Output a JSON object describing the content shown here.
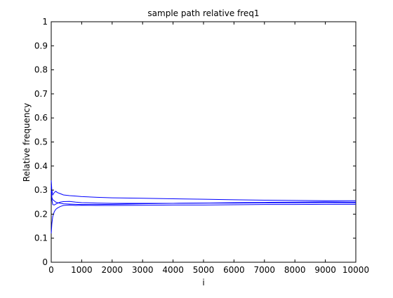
{
  "chart_data": {
    "type": "line",
    "title": "sample path relative freq1",
    "xlabel": "i",
    "ylabel": "Relative frequency",
    "xlim": [
      0,
      10000
    ],
    "ylim": [
      0,
      1
    ],
    "x_ticks": [
      0,
      1000,
      2000,
      3000,
      4000,
      5000,
      6000,
      7000,
      8000,
      9000,
      10000
    ],
    "y_ticks": [
      0,
      0.1,
      0.2,
      0.3,
      0.4,
      0.5,
      0.6,
      0.7,
      0.8,
      0.9,
      1
    ],
    "x_tick_labels": [
      "0",
      "1000",
      "2000",
      "3000",
      "4000",
      "5000",
      "6000",
      "7000",
      "8000",
      "9000",
      "10000"
    ],
    "y_tick_labels": [
      "0",
      "0.1",
      "0.2",
      "0.3",
      "0.4",
      "0.5",
      "0.6",
      "0.7",
      "0.8",
      "0.9",
      "1"
    ],
    "grid": false,
    "line_color": "#0000ff",
    "series": [
      {
        "x": [
          1,
          20,
          50,
          100,
          150,
          200,
          300,
          400,
          600,
          800,
          1000,
          1500,
          2000,
          3000,
          4000,
          5000,
          6000,
          7000,
          8000,
          9000,
          10000
        ],
        "values": [
          0.34,
          0.3,
          0.28,
          0.29,
          0.295,
          0.29,
          0.285,
          0.28,
          0.277,
          0.275,
          0.273,
          0.27,
          0.268,
          0.266,
          0.264,
          0.262,
          0.26,
          0.258,
          0.257,
          0.256,
          0.256
        ]
      },
      {
        "x": [
          1,
          20,
          50,
          100,
          150,
          200,
          300,
          400,
          600,
          800,
          1000,
          1500,
          2000,
          3000,
          4000,
          5000,
          6000,
          7000,
          8000,
          9000,
          10000
        ],
        "values": [
          0.32,
          0.27,
          0.26,
          0.255,
          0.25,
          0.248,
          0.245,
          0.243,
          0.242,
          0.241,
          0.24,
          0.24,
          0.241,
          0.243,
          0.245,
          0.246,
          0.248,
          0.249,
          0.25,
          0.251,
          0.25
        ]
      },
      {
        "x": [
          1,
          20,
          50,
          100,
          150,
          200,
          300,
          400,
          600,
          800,
          1000,
          1500,
          2000,
          3000,
          4000,
          5000,
          6000,
          7000,
          8000,
          9000,
          10000
        ],
        "values": [
          0.12,
          0.16,
          0.19,
          0.21,
          0.22,
          0.225,
          0.232,
          0.236,
          0.238,
          0.236,
          0.237,
          0.236,
          0.236,
          0.237,
          0.238,
          0.238,
          0.239,
          0.24,
          0.24,
          0.241,
          0.241
        ]
      },
      {
        "x": [
          1,
          20,
          50,
          100,
          150,
          200,
          300,
          400,
          600,
          800,
          1000,
          1500,
          2000,
          3000,
          4000,
          5000,
          6000,
          7000,
          8000,
          9000,
          10000
        ],
        "values": [
          0.3,
          0.26,
          0.24,
          0.238,
          0.242,
          0.245,
          0.25,
          0.252,
          0.253,
          0.25,
          0.248,
          0.246,
          0.245,
          0.245,
          0.245,
          0.246,
          0.246,
          0.247,
          0.247,
          0.248,
          0.247
        ]
      }
    ]
  }
}
